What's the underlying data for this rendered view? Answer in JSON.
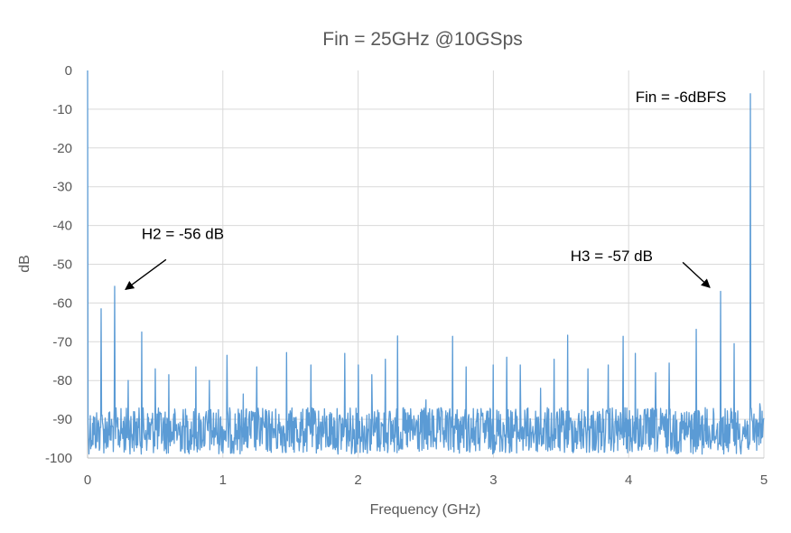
{
  "chart_data": {
    "type": "line",
    "title": "Fin = 25GHz @10GSps",
    "xlabel": "Frequency (GHz)",
    "ylabel": "dB",
    "xlim": [
      0,
      5
    ],
    "ylim": [
      -100,
      0
    ],
    "xticks": [
      "0",
      "1",
      "2",
      "3",
      "4",
      "5"
    ],
    "yticks": [
      "0",
      "-10",
      "-20",
      "-30",
      "-40",
      "-50",
      "-60",
      "-70",
      "-80",
      "-90",
      "-100"
    ],
    "grid": true,
    "series_color": "#5b9bd5",
    "noise_floor": {
      "min_db": -99,
      "max_db": -87
    },
    "spurs": [
      {
        "x": 0.0,
        "y": 0
      },
      {
        "x": 0.1,
        "y": -61.5
      },
      {
        "x": 0.2,
        "y": -55.7
      },
      {
        "x": 0.3,
        "y": -80
      },
      {
        "x": 0.4,
        "y": -67.5
      },
      {
        "x": 0.5,
        "y": -77
      },
      {
        "x": 0.6,
        "y": -78.5
      },
      {
        "x": 0.8,
        "y": -76.5
      },
      {
        "x": 0.9,
        "y": -80
      },
      {
        "x": 1.03,
        "y": -73.5
      },
      {
        "x": 1.15,
        "y": -83.5
      },
      {
        "x": 1.25,
        "y": -76.5
      },
      {
        "x": 1.47,
        "y": -72.8
      },
      {
        "x": 1.65,
        "y": -76
      },
      {
        "x": 1.9,
        "y": -73
      },
      {
        "x": 2.0,
        "y": -76
      },
      {
        "x": 2.1,
        "y": -78.5
      },
      {
        "x": 2.2,
        "y": -74.5
      },
      {
        "x": 2.29,
        "y": -68.5
      },
      {
        "x": 2.5,
        "y": -85
      },
      {
        "x": 2.7,
        "y": -68.6
      },
      {
        "x": 2.8,
        "y": -76.5
      },
      {
        "x": 3.0,
        "y": -76
      },
      {
        "x": 3.1,
        "y": -74
      },
      {
        "x": 3.2,
        "y": -76
      },
      {
        "x": 3.35,
        "y": -82
      },
      {
        "x": 3.45,
        "y": -74.5
      },
      {
        "x": 3.55,
        "y": -68.3
      },
      {
        "x": 3.7,
        "y": -77
      },
      {
        "x": 3.85,
        "y": -76
      },
      {
        "x": 3.96,
        "y": -68.6
      },
      {
        "x": 4.05,
        "y": -73
      },
      {
        "x": 4.2,
        "y": -78
      },
      {
        "x": 4.3,
        "y": -75.5
      },
      {
        "x": 4.5,
        "y": -66.8
      },
      {
        "x": 4.68,
        "y": -57
      },
      {
        "x": 4.78,
        "y": -70.5
      },
      {
        "x": 4.9,
        "y": -6
      },
      {
        "x": 4.97,
        "y": -86
      }
    ],
    "annotations": [
      {
        "text": "Fin = -6dBFS",
        "x": 4.05,
        "y": -8.2,
        "arrow": null
      },
      {
        "text": "H2 = -56 dB",
        "x": 0.4,
        "y": -43.5,
        "arrow": {
          "from": [
            0.58,
            -48.8
          ],
          "to": [
            0.28,
            -56.5
          ]
        }
      },
      {
        "text": "H3 = -57 dB",
        "x": 3.57,
        "y": -49.2,
        "arrow": {
          "from": [
            4.4,
            -49.5
          ],
          "to": [
            4.6,
            -56
          ]
        }
      }
    ]
  }
}
